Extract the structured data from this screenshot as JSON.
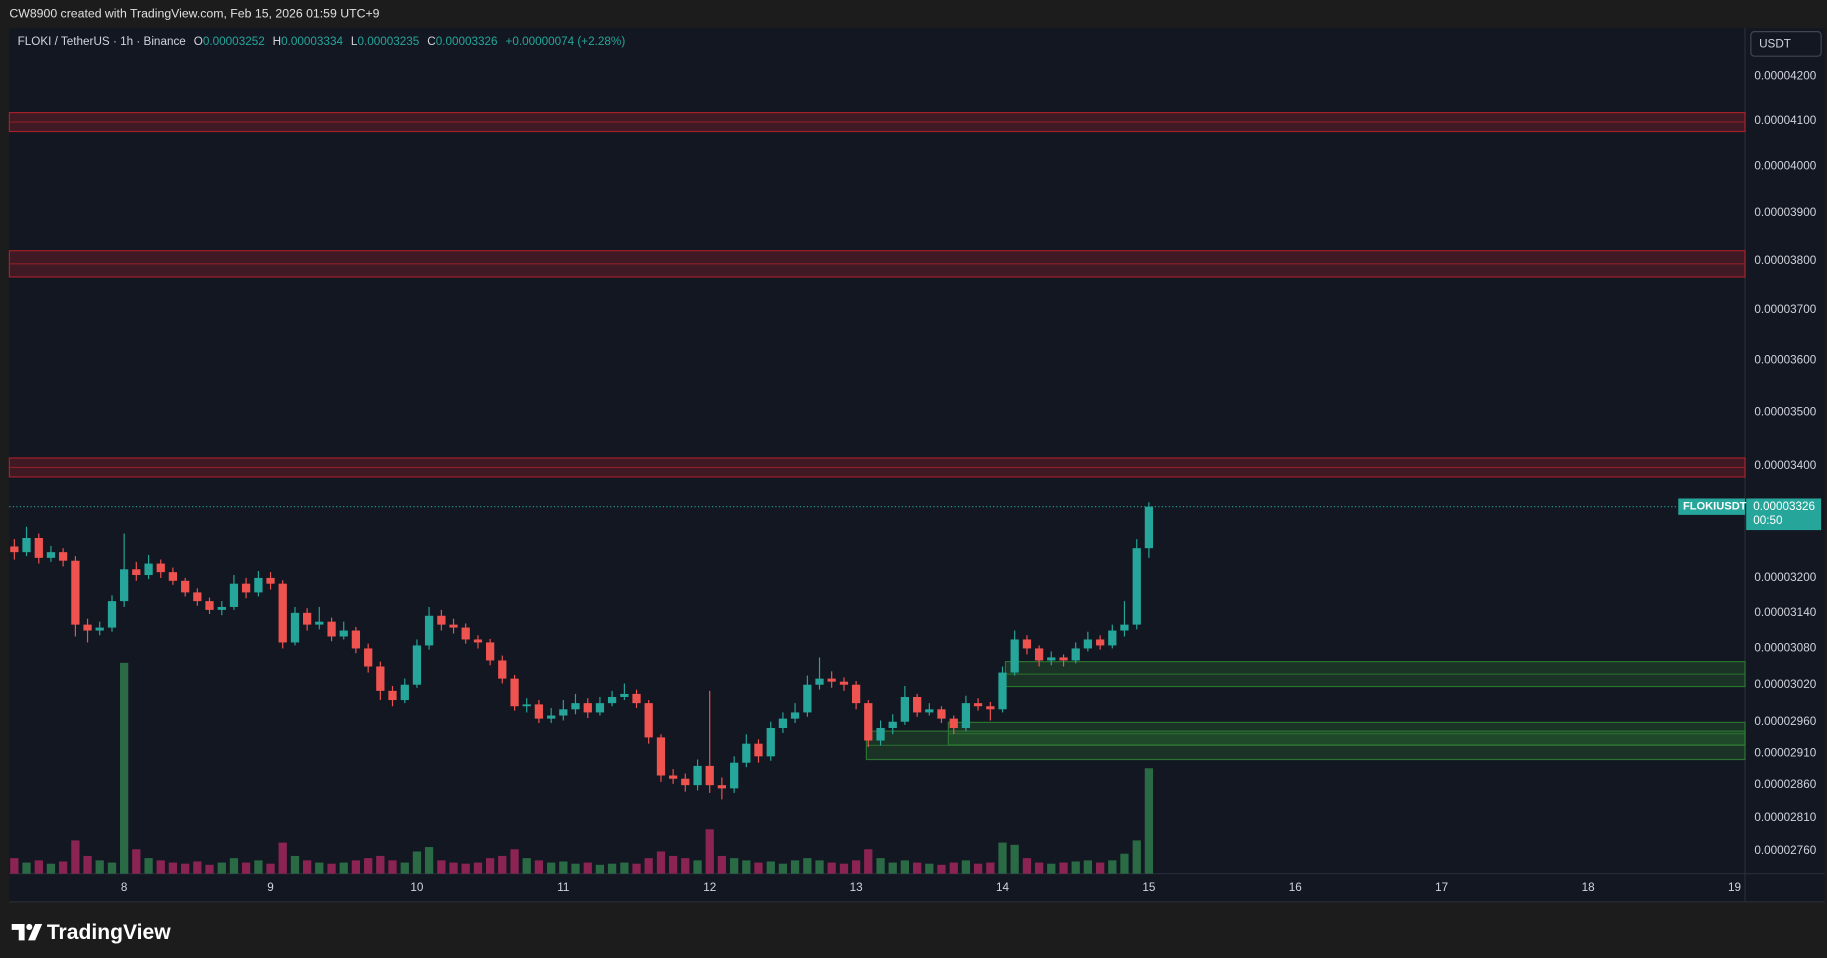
{
  "watermark": "CW8900 created with TradingView.com, Feb 15, 2026 01:59 UTC+9",
  "logo": "TradingView",
  "chart_data": {
    "type": "candlestick",
    "title": "FLOKI / TetherUS · 1h · Binance",
    "legend_keys": [
      "O",
      "H",
      "L",
      "C"
    ],
    "change_label": "+0.00000074 (+2.28%)",
    "currency": "USDT",
    "symbol_tag": "FLOKIUSDT",
    "countdown": "00:50",
    "log_scale": true,
    "grid": false,
    "up_color": "#26a69a",
    "down_color": "#ef5350",
    "volume_up_color": "#2a6b45",
    "volume_down_color": "#8c2453",
    "x": [
      7.25,
      7.333,
      7.417,
      7.5,
      7.583,
      7.667,
      7.75,
      7.833,
      7.917,
      8,
      8.083,
      8.167,
      8.25,
      8.333,
      8.417,
      8.5,
      8.583,
      8.667,
      8.75,
      8.833,
      8.917,
      9,
      9.083,
      9.167,
      9.25,
      9.333,
      9.417,
      9.5,
      9.583,
      9.667,
      9.75,
      9.833,
      9.917,
      10,
      10.083,
      10.167,
      10.25,
      10.333,
      10.417,
      10.5,
      10.583,
      10.667,
      10.75,
      10.833,
      10.917,
      11,
      11.083,
      11.167,
      11.25,
      11.333,
      11.417,
      11.5,
      11.583,
      11.667,
      11.75,
      11.833,
      11.917,
      12,
      12.083,
      12.167,
      12.25,
      12.333,
      12.417,
      12.5,
      12.583,
      12.667,
      12.75,
      12.833,
      12.917,
      13,
      13.083,
      13.167,
      13.25,
      13.333,
      13.417,
      13.5,
      13.583,
      13.667,
      13.75,
      13.833,
      13.917,
      14,
      14.083,
      14.167,
      14.25,
      14.333,
      14.417,
      14.5,
      14.583,
      14.667,
      14.75,
      14.833,
      14.917,
      15
    ],
    "ohlc": [
      [
        3.255e-05,
        3.268e-05,
        3.232e-05,
        3.245e-05
      ],
      [
        3.245e-05,
        3.29e-05,
        3.238e-05,
        3.27e-05
      ],
      [
        3.27e-05,
        3.278e-05,
        3.225e-05,
        3.235e-05
      ],
      [
        3.235e-05,
        3.256e-05,
        3.228e-05,
        3.245e-05
      ],
      [
        3.245e-05,
        3.252e-05,
        3.22e-05,
        3.23e-05
      ],
      [
        3.23e-05,
        3.238e-05,
        3.1e-05,
        3.12e-05
      ],
      [
        3.12e-05,
        3.13e-05,
        3.09e-05,
        3.11e-05
      ],
      [
        3.11e-05,
        3.125e-05,
        3.102e-05,
        3.115e-05
      ],
      [
        3.115e-05,
        3.17e-05,
        3.108e-05,
        3.16e-05
      ],
      [
        3.16e-05,
        3.278e-05,
        3.15e-05,
        3.215e-05
      ],
      [
        3.215e-05,
        3.228e-05,
        3.195e-05,
        3.205e-05
      ],
      [
        3.205e-05,
        3.24e-05,
        3.198e-05,
        3.225e-05
      ],
      [
        3.225e-05,
        3.232e-05,
        3.2e-05,
        3.21e-05
      ],
      [
        3.21e-05,
        3.218e-05,
        3.188e-05,
        3.195e-05
      ],
      [
        3.195e-05,
        3.2e-05,
        3.168e-05,
        3.175e-05
      ],
      [
        3.175e-05,
        3.182e-05,
        3.152e-05,
        3.16e-05
      ],
      [
        3.16e-05,
        3.166e-05,
        3.138e-05,
        3.145e-05
      ],
      [
        3.145e-05,
        3.16e-05,
        3.136e-05,
        3.15e-05
      ],
      [
        3.15e-05,
        3.205e-05,
        3.145e-05,
        3.19e-05
      ],
      [
        3.19e-05,
        3.2e-05,
        3.165e-05,
        3.175e-05
      ],
      [
        3.175e-05,
        3.212e-05,
        3.168e-05,
        3.2e-05
      ],
      [
        3.2e-05,
        3.21e-05,
        3.18e-05,
        3.19e-05
      ],
      [
        3.19e-05,
        3.196e-05,
        3.08e-05,
        3.09e-05
      ],
      [
        3.09e-05,
        3.15e-05,
        3.085e-05,
        3.14e-05
      ],
      [
        3.14e-05,
        3.148e-05,
        3.11e-05,
        3.12e-05
      ],
      [
        3.12e-05,
        3.15e-05,
        3.112e-05,
        3.125e-05
      ],
      [
        3.125e-05,
        3.132e-05,
        3.092e-05,
        3.1e-05
      ],
      [
        3.1e-05,
        3.125e-05,
        3.095e-05,
        3.11e-05
      ],
      [
        3.11e-05,
        3.116e-05,
        3.072e-05,
        3.08e-05
      ],
      [
        3.08e-05,
        3.088e-05,
        3.04e-05,
        3.05e-05
      ],
      [
        3.05e-05,
        3.058e-05,
        2.995e-05,
        3.01e-05
      ],
      [
        3.01e-05,
        3.018e-05,
        2.985e-05,
        2.995e-05
      ],
      [
        2.995e-05,
        3.03e-05,
        2.99e-05,
        3.02e-05
      ],
      [
        3.02e-05,
        3.095e-05,
        3.015e-05,
        3.085e-05
      ],
      [
        3.085e-05,
        3.15e-05,
        3.078e-05,
        3.135e-05
      ],
      [
        3.135e-05,
        3.145e-05,
        3.11e-05,
        3.12e-05
      ],
      [
        3.12e-05,
        3.13e-05,
        3.105e-05,
        3.115e-05
      ],
      [
        3.115e-05,
        3.122e-05,
        3.088e-05,
        3.095e-05
      ],
      [
        3.095e-05,
        3.102e-05,
        3.08e-05,
        3.09e-05
      ],
      [
        3.09e-05,
        3.096e-05,
        3.052e-05,
        3.06e-05
      ],
      [
        3.06e-05,
        3.068e-05,
        3.022e-05,
        3.03e-05
      ],
      [
        3.03e-05,
        3.036e-05,
        2.978e-05,
        2.985e-05
      ],
      [
        2.985e-05,
        2.998e-05,
        2.975e-05,
        2.988e-05
      ],
      [
        2.988e-05,
        2.995e-05,
        2.958e-05,
        2.965e-05
      ],
      [
        2.965e-05,
        2.982e-05,
        2.958e-05,
        2.97e-05
      ],
      [
        2.97e-05,
        2.995e-05,
        2.962e-05,
        2.98e-05
      ],
      [
        2.98e-05,
        3.005e-05,
        2.972e-05,
        2.99e-05
      ],
      [
        2.99e-05,
        2.998e-05,
        2.966e-05,
        2.975e-05
      ],
      [
        2.975e-05,
        3e-05,
        2.97e-05,
        2.99e-05
      ],
      [
        2.99e-05,
        3.01e-05,
        2.985e-05,
        3e-05
      ],
      [
        3e-05,
        3.022e-05,
        2.995e-05,
        3.005e-05
      ],
      [
        3.005e-05,
        3.012e-05,
        2.982e-05,
        2.99e-05
      ],
      [
        2.99e-05,
        2.995e-05,
        2.925e-05,
        2.935e-05
      ],
      [
        2.935e-05,
        2.94e-05,
        2.865e-05,
        2.875e-05
      ],
      [
        2.875e-05,
        2.885e-05,
        2.862e-05,
        2.87e-05
      ],
      [
        2.87e-05,
        2.878e-05,
        2.85e-05,
        2.86e-05
      ],
      [
        2.86e-05,
        2.9e-05,
        2.852e-05,
        2.89e-05
      ],
      [
        2.89e-05,
        3.01e-05,
        2.848e-05,
        2.86e-05
      ],
      [
        2.86e-05,
        2.872e-05,
        2.838e-05,
        2.855e-05
      ],
      [
        2.855e-05,
        2.905e-05,
        2.848e-05,
        2.895e-05
      ],
      [
        2.895e-05,
        2.94e-05,
        2.888e-05,
        2.925e-05
      ],
      [
        2.925e-05,
        2.932e-05,
        2.895e-05,
        2.905e-05
      ],
      [
        2.905e-05,
        2.96e-05,
        2.898e-05,
        2.95e-05
      ],
      [
        2.95e-05,
        2.975e-05,
        2.942e-05,
        2.965e-05
      ],
      [
        2.965e-05,
        2.99e-05,
        2.958e-05,
        2.975e-05
      ],
      [
        2.975e-05,
        3.035e-05,
        2.968e-05,
        3.02e-05
      ],
      [
        3.02e-05,
        3.065e-05,
        3.012e-05,
        3.03e-05
      ],
      [
        3.03e-05,
        3.042e-05,
        3.015e-05,
        3.025e-05
      ],
      [
        3.025e-05,
        3.032e-05,
        3.01e-05,
        3.02e-05
      ],
      [
        3.02e-05,
        3.026e-05,
        2.98e-05,
        2.99e-05
      ],
      [
        2.99e-05,
        2.995e-05,
        2.92e-05,
        2.93e-05
      ],
      [
        2.93e-05,
        2.962e-05,
        2.922e-05,
        2.95e-05
      ],
      [
        2.95e-05,
        2.972e-05,
        2.94e-05,
        2.96e-05
      ],
      [
        2.96e-05,
        3.018e-05,
        2.955e-05,
        3e-05
      ],
      [
        3e-05,
        3.005e-05,
        2.968e-05,
        2.975e-05
      ],
      [
        2.975e-05,
        2.99e-05,
        2.97e-05,
        2.98e-05
      ],
      [
        2.98e-05,
        2.985e-05,
        2.958e-05,
        2.965e-05
      ],
      [
        2.965e-05,
        2.97e-05,
        2.94e-05,
        2.95e-05
      ],
      [
        2.95e-05,
        3.002e-05,
        2.945e-05,
        2.99e-05
      ],
      [
        2.99e-05,
        2.998e-05,
        2.978e-05,
        2.985e-05
      ],
      [
        2.985e-05,
        2.992e-05,
        2.962e-05,
        2.98e-05
      ],
      [
        2.98e-05,
        3.05e-05,
        2.975e-05,
        3.04e-05
      ],
      [
        3.04e-05,
        3.11e-05,
        3.035e-05,
        3.095e-05
      ],
      [
        3.095e-05,
        3.102e-05,
        3.07e-05,
        3.08e-05
      ],
      [
        3.08e-05,
        3.085e-05,
        3.05e-05,
        3.06e-05
      ],
      [
        3.06e-05,
        3.075e-05,
        3.052e-05,
        3.065e-05
      ],
      [
        3.065e-05,
        3.07e-05,
        3.05e-05,
        3.06e-05
      ],
      [
        3.06e-05,
        3.09e-05,
        3.055e-05,
        3.08e-05
      ],
      [
        3.08e-05,
        3.108e-05,
        3.075e-05,
        3.095e-05
      ],
      [
        3.095e-05,
        3.102e-05,
        3.078e-05,
        3.085e-05
      ],
      [
        3.085e-05,
        3.12e-05,
        3.08e-05,
        3.11e-05
      ],
      [
        3.11e-05,
        3.16e-05,
        3.1e-05,
        3.12e-05
      ],
      [
        3.12e-05,
        3.268e-05,
        3.112e-05,
        3.252e-05
      ],
      [
        3.252e-05,
        3.334e-05,
        3.235e-05,
        3.326e-05
      ]
    ],
    "volume": [
      14,
      10,
      12,
      9,
      11,
      30,
      16,
      12,
      10,
      190,
      22,
      14,
      12,
      10,
      9,
      11,
      8,
      10,
      14,
      10,
      12,
      9,
      28,
      16,
      12,
      10,
      9,
      10,
      12,
      14,
      16,
      12,
      10,
      20,
      24,
      12,
      10,
      9,
      10,
      14,
      16,
      22,
      14,
      12,
      10,
      11,
      9,
      10,
      8,
      9,
      10,
      9,
      14,
      20,
      16,
      14,
      12,
      40,
      16,
      14,
      12,
      10,
      11,
      9,
      12,
      14,
      12,
      10,
      9,
      12,
      22,
      14,
      10,
      12,
      10,
      9,
      8,
      10,
      12,
      9,
      10,
      28,
      26,
      14,
      10,
      9,
      10,
      11,
      12,
      10,
      12,
      18,
      30,
      95
    ],
    "xlim": [
      7.216,
      19.072
    ],
    "xticks": [
      8,
      9,
      10,
      11,
      12,
      13,
      14,
      15,
      16,
      17,
      18,
      19
    ],
    "ylim": [
      2.726e-05,
      4.311e-05
    ],
    "yticks": [
      {
        "value": 4.2e-05,
        "label": "0.00004200"
      },
      {
        "value": 4.1e-05,
        "label": "0.00004100"
      },
      {
        "value": 4e-05,
        "label": "0.00004000"
      },
      {
        "value": 3.9e-05,
        "label": "0.00003900"
      },
      {
        "value": 3.8e-05,
        "label": "0.00003800"
      },
      {
        "value": 3.7e-05,
        "label": "0.00003700"
      },
      {
        "value": 3.6e-05,
        "label": "0.00003600"
      },
      {
        "value": 3.5e-05,
        "label": "0.00003500"
      },
      {
        "value": 3.4e-05,
        "label": "0.00003400"
      },
      {
        "value": 3.2e-05,
        "label": "0.00003200"
      },
      {
        "value": 3.14e-05,
        "label": "0.00003140"
      },
      {
        "value": 3.08e-05,
        "label": "0.00003080"
      },
      {
        "value": 3.02e-05,
        "label": "0.00003020"
      },
      {
        "value": 2.96e-05,
        "label": "0.00002960"
      },
      {
        "value": 2.91e-05,
        "label": "0.00002910"
      },
      {
        "value": 2.86e-05,
        "label": "0.00002860"
      },
      {
        "value": 2.81e-05,
        "label": "0.00002810"
      },
      {
        "value": 2.76e-05,
        "label": "0.00002760"
      }
    ],
    "zones": [
      {
        "color": "#b2222b",
        "lo": 4.076e-05,
        "hi": 4.118e-05
      },
      {
        "color": "#b2222b",
        "lo": 3.767e-05,
        "hi": 3.821e-05
      },
      {
        "color": "#b2222b",
        "lo": 3.38e-05,
        "hi": 3.415e-05
      },
      {
        "color": "#2e7d32",
        "lo": 3.017e-05,
        "hi": 3.058e-05,
        "from": 14.02
      },
      {
        "color": "#2e7d32",
        "lo": 2.9e-05,
        "hi": 2.945e-05,
        "from": 13.07
      },
      {
        "color": "#2e7d32",
        "lo": 2.923e-05,
        "hi": 2.959e-05,
        "from": 13.63
      }
    ]
  }
}
